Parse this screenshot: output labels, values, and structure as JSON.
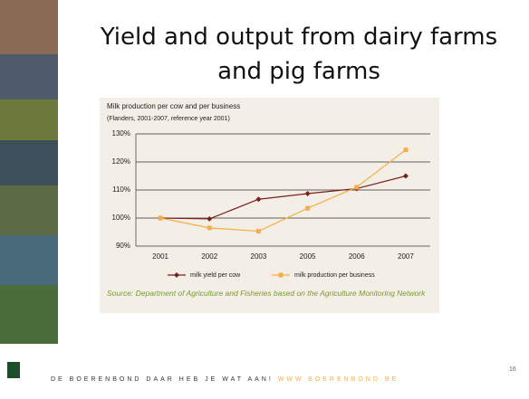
{
  "slide": {
    "title": "Yield and output from dairy farms and pig farms",
    "source": "Source: Department of Agriculture and Fisheries based on the Agriculture Monitoring Network",
    "footer": {
      "slogan": "DE BOERENBOND DAAR HEB JE WAT AAN!",
      "url": "WWW.BOERENBOND.BE"
    },
    "page_number": "16"
  },
  "chart_data": {
    "type": "line",
    "title": "Milk production per cow and per business",
    "subtitle": "(Flanders, 2001-2007, reference year 2001)",
    "categories": [
      "2001",
      "2002",
      "2003",
      "2005",
      "2006",
      "2007"
    ],
    "series": [
      {
        "name": "milk yield per cow",
        "color": "#7b1f1f",
        "marker": "diamond",
        "values": [
          100,
          99.7,
          106.7,
          108.7,
          110.5,
          115
        ]
      },
      {
        "name": "milk production per business",
        "color": "#f4ae45",
        "marker": "square",
        "values": [
          100,
          96.5,
          95.3,
          103.5,
          111,
          124.3
        ]
      }
    ],
    "ylim": [
      90,
      130
    ],
    "yticks": [
      {
        "value": 90,
        "label": "90%"
      },
      {
        "value": 100,
        "label": "100%"
      },
      {
        "value": 110,
        "label": "110%"
      },
      {
        "value": 120,
        "label": "120%"
      },
      {
        "value": 130,
        "label": "130%"
      }
    ],
    "grid": true,
    "legend": "bottom"
  }
}
